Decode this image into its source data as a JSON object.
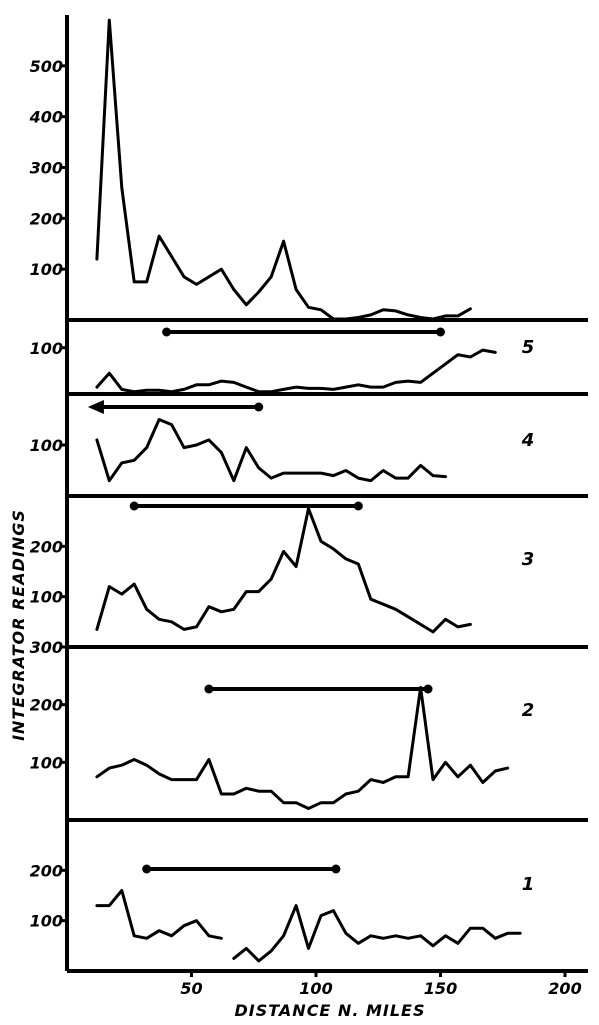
{
  "chart_data": {
    "type": "line",
    "xlabel": "DISTANCE  N. MILES",
    "ylabel": "INTEGRATOR READINGS",
    "x_ticks": [
      50,
      100,
      150,
      200
    ],
    "xlim": [
      0,
      210
    ],
    "panels": [
      {
        "key": "p6",
        "label": "",
        "ylim": [
          0,
          600
        ],
        "y_ticks": [
          100,
          200,
          300,
          400,
          500
        ],
        "y_tick_labels": [
          "100",
          "200",
          "300",
          "400",
          "500"
        ],
        "range": null,
        "segments": [
          [
            [
              12,
              120
            ],
            [
              17,
              590
            ],
            [
              22,
              260
            ],
            [
              27,
              75
            ],
            [
              32,
              75
            ],
            [
              37,
              165
            ],
            [
              42,
              125
            ],
            [
              47,
              85
            ],
            [
              52,
              70
            ],
            [
              57,
              85
            ],
            [
              62,
              100
            ],
            [
              67,
              60
            ],
            [
              72,
              30
            ],
            [
              77,
              55
            ],
            [
              82,
              85
            ],
            [
              87,
              155
            ],
            [
              92,
              60
            ],
            [
              97,
              25
            ],
            [
              102,
              20
            ],
            [
              107,
              2
            ],
            [
              112,
              2
            ],
            [
              117,
              5
            ],
            [
              122,
              10
            ],
            [
              127,
              20
            ],
            [
              132,
              18
            ],
            [
              137,
              10
            ],
            [
              142,
              5
            ],
            [
              147,
              2
            ],
            [
              152,
              8
            ],
            [
              157,
              8
            ],
            [
              162,
              22
            ]
          ]
        ]
      },
      {
        "key": "p5",
        "label": "5",
        "ylim": [
          0,
          160
        ],
        "y_ticks": [
          100
        ],
        "y_tick_labels": [
          "100"
        ],
        "range": {
          "from": 40,
          "to": 150,
          "arrow": false
        },
        "segments": [
          [
            [
              12,
              15
            ],
            [
              17,
              45
            ],
            [
              22,
              10
            ],
            [
              27,
              5
            ],
            [
              32,
              8
            ],
            [
              37,
              8
            ],
            [
              42,
              5
            ],
            [
              47,
              10
            ],
            [
              52,
              20
            ],
            [
              57,
              20
            ],
            [
              62,
              28
            ],
            [
              67,
              25
            ],
            [
              72,
              15
            ],
            [
              77,
              5
            ],
            [
              82,
              5
            ],
            [
              87,
              10
            ],
            [
              92,
              15
            ],
            [
              97,
              12
            ],
            [
              102,
              12
            ],
            [
              107,
              10
            ],
            [
              112,
              15
            ],
            [
              117,
              20
            ],
            [
              122,
              15
            ],
            [
              127,
              15
            ],
            [
              132,
              25
            ],
            [
              137,
              28
            ],
            [
              142,
              25
            ],
            [
              147,
              45
            ],
            [
              152,
              65
            ],
            [
              157,
              85
            ],
            [
              162,
              80
            ],
            [
              167,
              95
            ],
            [
              172,
              90
            ]
          ]
        ]
      },
      {
        "key": "p4",
        "label": "4",
        "ylim": [
          0,
          200
        ],
        "y_ticks": [
          100
        ],
        "y_tick_labels": [
          "100"
        ],
        "range": {
          "from": 10,
          "to": 77,
          "arrow": true
        },
        "segments": [
          [
            [
              12,
              110
            ],
            [
              17,
              30
            ],
            [
              22,
              65
            ],
            [
              27,
              70
            ],
            [
              32,
              95
            ],
            [
              37,
              150
            ],
            [
              42,
              140
            ],
            [
              47,
              95
            ],
            [
              52,
              100
            ],
            [
              57,
              110
            ],
            [
              62,
              85
            ],
            [
              67,
              30
            ],
            [
              72,
              95
            ],
            [
              77,
              55
            ],
            [
              82,
              35
            ],
            [
              87,
              45
            ],
            [
              92,
              45
            ],
            [
              97,
              45
            ],
            [
              102,
              45
            ],
            [
              107,
              40
            ],
            [
              112,
              50
            ],
            [
              117,
              35
            ],
            [
              122,
              30
            ],
            [
              127,
              50
            ],
            [
              132,
              35
            ],
            [
              137,
              35
            ],
            [
              142,
              60
            ],
            [
              147,
              40
            ],
            [
              152,
              38
            ]
          ]
        ]
      },
      {
        "key": "p3",
        "label": "3",
        "ylim": [
          0,
          300
        ],
        "y_ticks": [
          100,
          200
        ],
        "y_tick_labels": [
          "100",
          "200"
        ],
        "range": {
          "from": 27,
          "to": 117,
          "arrow": false
        },
        "segments": [
          [
            [
              12,
              35
            ],
            [
              17,
              120
            ],
            [
              22,
              105
            ],
            [
              27,
              125
            ],
            [
              32,
              75
            ],
            [
              37,
              55
            ],
            [
              42,
              50
            ],
            [
              47,
              35
            ],
            [
              52,
              40
            ],
            [
              57,
              80
            ],
            [
              62,
              70
            ],
            [
              67,
              75
            ],
            [
              72,
              110
            ],
            [
              77,
              110
            ],
            [
              82,
              135
            ],
            [
              87,
              190
            ],
            [
              92,
              160
            ],
            [
              97,
              275
            ],
            [
              102,
              210
            ],
            [
              107,
              195
            ],
            [
              112,
              175
            ],
            [
              117,
              165
            ],
            [
              122,
              95
            ],
            [
              127,
              85
            ],
            [
              132,
              75
            ],
            [
              137,
              60
            ],
            [
              142,
              45
            ],
            [
              147,
              30
            ],
            [
              152,
              55
            ],
            [
              157,
              40
            ],
            [
              162,
              45
            ]
          ]
        ]
      },
      {
        "key": "p2",
        "label": "2",
        "ylim": [
          0,
          300
        ],
        "y_ticks": [
          100,
          200,
          300
        ],
        "y_tick_labels": [
          "100",
          "200",
          "300"
        ],
        "range": {
          "from": 57,
          "to": 145,
          "arrow": false
        },
        "segments": [
          [
            [
              12,
              75
            ],
            [
              17,
              90
            ],
            [
              22,
              95
            ],
            [
              27,
              105
            ],
            [
              32,
              95
            ],
            [
              37,
              80
            ],
            [
              42,
              70
            ],
            [
              47,
              70
            ],
            [
              52,
              70
            ],
            [
              57,
              105
            ],
            [
              62,
              45
            ],
            [
              67,
              45
            ],
            [
              72,
              55
            ],
            [
              77,
              50
            ],
            [
              82,
              50
            ],
            [
              87,
              30
            ],
            [
              92,
              30
            ],
            [
              97,
              20
            ],
            [
              102,
              30
            ],
            [
              107,
              30
            ],
            [
              112,
              45
            ],
            [
              117,
              50
            ],
            [
              122,
              70
            ],
            [
              127,
              65
            ],
            [
              132,
              75
            ],
            [
              137,
              75
            ],
            [
              142,
              230
            ],
            [
              147,
              70
            ],
            [
              152,
              100
            ],
            [
              157,
              75
            ],
            [
              162,
              95
            ],
            [
              167,
              65
            ],
            [
              172,
              85
            ],
            [
              177,
              90
            ]
          ]
        ]
      },
      {
        "key": "p1",
        "label": "1",
        "ylim": [
          0,
          300
        ],
        "y_ticks": [
          100,
          200
        ],
        "y_tick_labels": [
          "100",
          "200"
        ],
        "range": {
          "from": 32,
          "to": 108,
          "arrow": false
        },
        "segments": [
          [
            [
              12,
              130
            ],
            [
              17,
              130
            ],
            [
              22,
              160
            ],
            [
              27,
              70
            ],
            [
              32,
              65
            ],
            [
              37,
              80
            ],
            [
              42,
              70
            ],
            [
              47,
              90
            ],
            [
              52,
              100
            ],
            [
              57,
              70
            ],
            [
              62,
              65
            ]
          ],
          [
            [
              67,
              25
            ],
            [
              72,
              45
            ],
            [
              77,
              20
            ],
            [
              82,
              40
            ],
            [
              87,
              70
            ],
            [
              92,
              130
            ],
            [
              97,
              45
            ],
            [
              102,
              110
            ],
            [
              107,
              120
            ],
            [
              112,
              75
            ],
            [
              117,
              55
            ],
            [
              122,
              70
            ],
            [
              127,
              65
            ],
            [
              132,
              70
            ],
            [
              137,
              65
            ],
            [
              142,
              70
            ],
            [
              147,
              50
            ],
            [
              152,
              70
            ],
            [
              157,
              55
            ],
            [
              162,
              85
            ],
            [
              167,
              85
            ],
            [
              172,
              65
            ],
            [
              177,
              75
            ],
            [
              182,
              75
            ]
          ]
        ]
      }
    ]
  }
}
